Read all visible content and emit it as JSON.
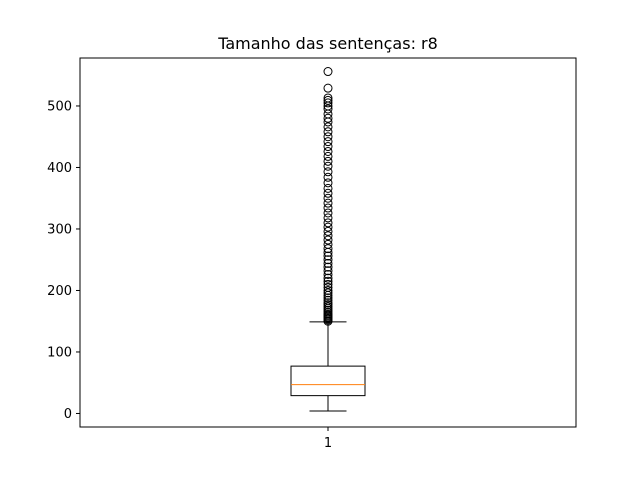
{
  "chart_data": {
    "type": "box",
    "title": "Tamanho das sentenças: r8",
    "xlabel": "",
    "ylabel": "",
    "categories": [
      "1"
    ],
    "ylim": [
      -22,
      578
    ],
    "yticks": [
      0,
      100,
      200,
      300,
      400,
      500
    ],
    "ytick_labels": [
      "0",
      "100",
      "200",
      "300",
      "400",
      "500"
    ],
    "grid": false,
    "box": {
      "whisker_low": 4,
      "q1": 29,
      "median": 47,
      "q3": 77,
      "whisker_high": 149
    },
    "outliers": [
      150,
      152,
      154,
      156,
      158,
      160,
      162,
      165,
      168,
      171,
      174,
      177,
      180,
      184,
      188,
      192,
      196,
      200,
      205,
      210,
      215,
      220,
      226,
      232,
      238,
      244,
      250,
      256,
      262,
      268,
      275,
      282,
      289,
      296,
      303,
      310,
      318,
      326,
      334,
      342,
      350,
      358,
      366,
      375,
      384,
      393,
      402,
      410,
      418,
      426,
      434,
      442,
      450,
      458,
      466,
      474,
      480,
      487,
      495,
      500,
      505,
      509,
      513,
      529,
      556
    ],
    "colors": {
      "box": "#000000",
      "median": "#ff7f0e",
      "outlier_edge": "#000000"
    }
  }
}
